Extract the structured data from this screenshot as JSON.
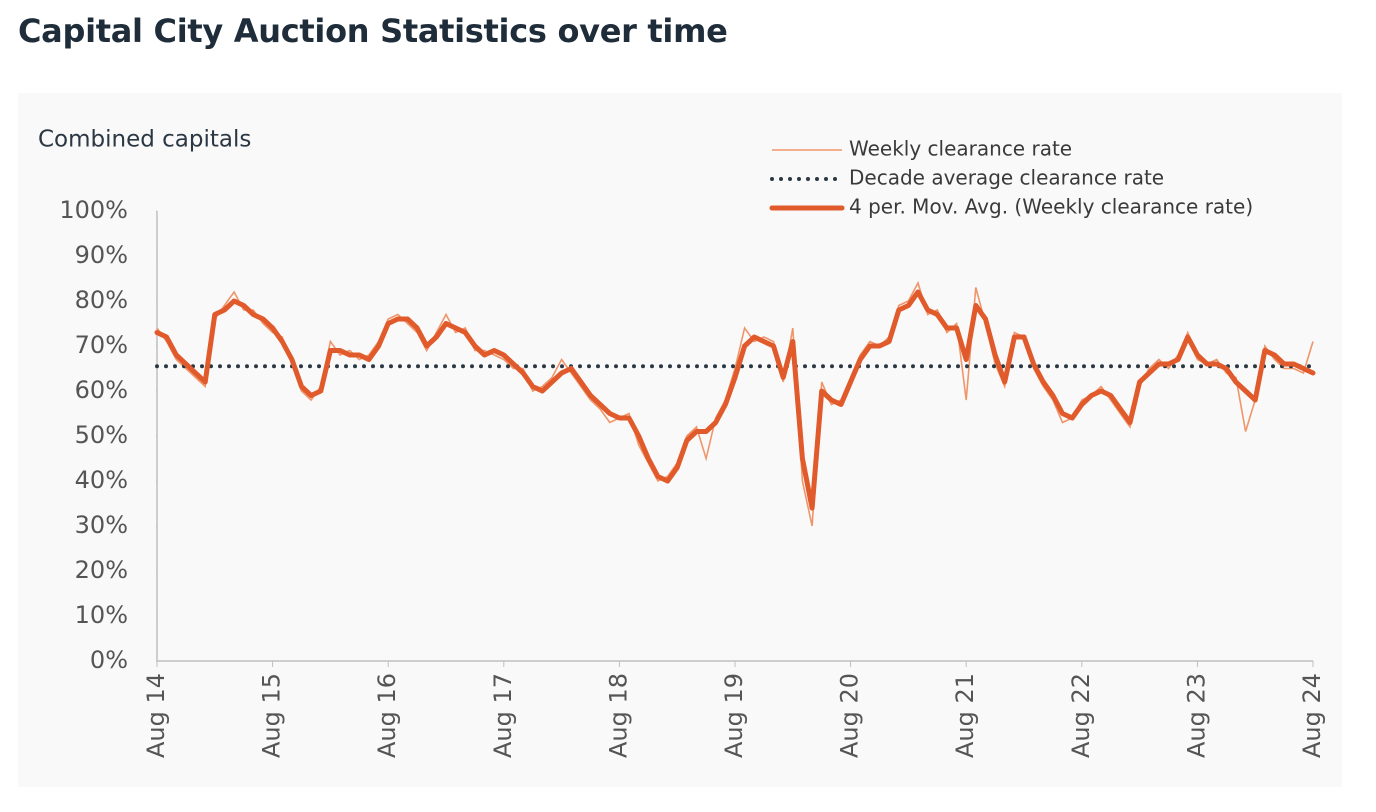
{
  "chart_data": {
    "type": "line",
    "title": "Capital City Auction Statistics over time",
    "subtitle": "Combined capitals",
    "categories": [
      "Aug 14",
      null,
      null,
      null,
      null,
      null,
      null,
      null,
      null,
      null,
      null,
      null,
      "Aug 15",
      null,
      null,
      null,
      null,
      null,
      null,
      null,
      null,
      null,
      null,
      null,
      "Aug 16",
      null,
      null,
      null,
      null,
      null,
      null,
      null,
      null,
      null,
      null,
      null,
      "Aug 17",
      null,
      null,
      null,
      null,
      null,
      null,
      null,
      null,
      null,
      null,
      null,
      "Aug 18",
      null,
      null,
      null,
      null,
      null,
      null,
      null,
      null,
      null,
      null,
      null,
      "Aug 19",
      null,
      null,
      null,
      null,
      null,
      null,
      null,
      null,
      null,
      null,
      null,
      "Aug 20",
      null,
      null,
      null,
      null,
      null,
      null,
      null,
      null,
      null,
      null,
      null,
      "Aug 21",
      null,
      null,
      null,
      null,
      null,
      null,
      null,
      null,
      null,
      null,
      null,
      "Aug 22",
      null,
      null,
      null,
      null,
      null,
      null,
      null,
      null,
      null,
      null,
      null,
      "Aug 23",
      null,
      null,
      null,
      null,
      null,
      null,
      null,
      null,
      null,
      null,
      null,
      "Aug 24"
    ],
    "series": [
      {
        "name": "Weekly clearance rate",
        "color": "#f0956a",
        "style": "thin",
        "values": [
          74,
          71,
          67,
          65,
          63,
          61,
          76,
          79,
          82,
          78,
          78,
          75,
          73,
          72,
          66,
          60,
          58,
          61,
          71,
          68,
          69,
          67,
          68,
          71,
          76,
          77,
          75,
          73,
          69,
          73,
          77,
          73,
          74,
          69,
          69,
          68,
          67,
          65,
          65,
          60,
          61,
          63,
          67,
          64,
          61,
          58,
          56,
          53,
          54,
          55,
          48,
          44,
          40,
          41,
          44,
          50,
          52,
          45,
          54,
          58,
          65,
          74,
          71,
          72,
          71,
          62,
          74,
          40,
          30,
          62,
          57,
          58,
          63,
          68,
          71,
          70,
          72,
          79,
          80,
          84,
          77,
          78,
          73,
          75,
          58,
          83,
          75,
          66,
          61,
          73,
          72,
          65,
          61,
          58,
          53,
          54,
          58,
          59,
          61,
          58,
          55,
          52,
          61,
          65,
          67,
          65,
          68,
          73,
          67,
          66,
          67,
          64,
          63,
          51,
          58,
          70,
          67,
          65,
          65,
          64,
          71
        ]
      },
      {
        "name": "Decade average clearance rate",
        "color": "#2b3742",
        "style": "dotted",
        "values": [
          65.5,
          65.5,
          65.5,
          65.5,
          65.5,
          65.5,
          65.5,
          65.5,
          65.5,
          65.5,
          65.5,
          65.5,
          65.5,
          65.5,
          65.5,
          65.5,
          65.5,
          65.5,
          65.5,
          65.5,
          65.5,
          65.5,
          65.5,
          65.5,
          65.5,
          65.5,
          65.5,
          65.5,
          65.5,
          65.5,
          65.5,
          65.5,
          65.5,
          65.5,
          65.5,
          65.5,
          65.5,
          65.5,
          65.5,
          65.5,
          65.5,
          65.5,
          65.5,
          65.5,
          65.5,
          65.5,
          65.5,
          65.5,
          65.5,
          65.5,
          65.5,
          65.5,
          65.5,
          65.5,
          65.5,
          65.5,
          65.5,
          65.5,
          65.5,
          65.5,
          65.5,
          65.5,
          65.5,
          65.5,
          65.5,
          65.5,
          65.5,
          65.5,
          65.5,
          65.5,
          65.5,
          65.5,
          65.5,
          65.5,
          65.5,
          65.5,
          65.5,
          65.5,
          65.5,
          65.5,
          65.5,
          65.5,
          65.5,
          65.5,
          65.5,
          65.5,
          65.5,
          65.5,
          65.5,
          65.5,
          65.5,
          65.5,
          65.5,
          65.5,
          65.5,
          65.5,
          65.5,
          65.5,
          65.5,
          65.5,
          65.5,
          65.5,
          65.5,
          65.5,
          65.5,
          65.5,
          65.5,
          65.5,
          65.5,
          65.5,
          65.5,
          65.5,
          65.5,
          65.5,
          65.5,
          65.5,
          65.5,
          65.5,
          65.5,
          65.5,
          65.5
        ]
      },
      {
        "name": "4 per. Mov. Avg. (Weekly clearance rate)",
        "color": "#e05a2b",
        "style": "thick",
        "values": [
          73,
          72,
          68,
          66,
          64,
          62,
          77,
          78,
          80,
          79,
          77,
          76,
          74,
          71,
          67,
          61,
          59,
          60,
          69,
          69,
          68,
          68,
          67,
          70,
          75,
          76,
          76,
          74,
          70,
          72,
          75,
          74,
          73,
          70,
          68,
          69,
          68,
          66,
          64,
          61,
          60,
          62,
          64,
          65,
          62,
          59,
          57,
          55,
          54,
          54,
          50,
          45,
          41,
          40,
          43,
          49,
          51,
          51,
          53,
          57,
          63,
          70,
          72,
          71,
          70,
          63,
          71,
          45,
          34,
          60,
          58,
          57,
          62,
          67,
          70,
          70,
          71,
          78,
          79,
          82,
          78,
          77,
          74,
          74,
          67,
          79,
          76,
          68,
          62,
          72,
          72,
          66,
          62,
          59,
          55,
          54,
          57,
          59,
          60,
          59,
          56,
          53,
          62,
          64,
          66,
          66,
          67,
          72,
          68,
          66,
          66,
          65,
          62,
          60,
          58,
          69,
          68,
          66,
          66,
          65,
          64
        ]
      }
    ],
    "ylim": [
      0,
      100
    ],
    "yticks": [
      {
        "value": 0,
        "label": "0%"
      },
      {
        "value": 10,
        "label": "10%"
      },
      {
        "value": 20,
        "label": "20%"
      },
      {
        "value": 30,
        "label": "30%"
      },
      {
        "value": 40,
        "label": "40%"
      },
      {
        "value": 50,
        "label": "50%"
      },
      {
        "value": 60,
        "label": "60%"
      },
      {
        "value": 70,
        "label": "70%"
      },
      {
        "value": 80,
        "label": "80%"
      },
      {
        "value": 90,
        "label": "90%"
      },
      {
        "value": 100,
        "label": "100%"
      }
    ],
    "grid": false,
    "legend": "top-right"
  }
}
